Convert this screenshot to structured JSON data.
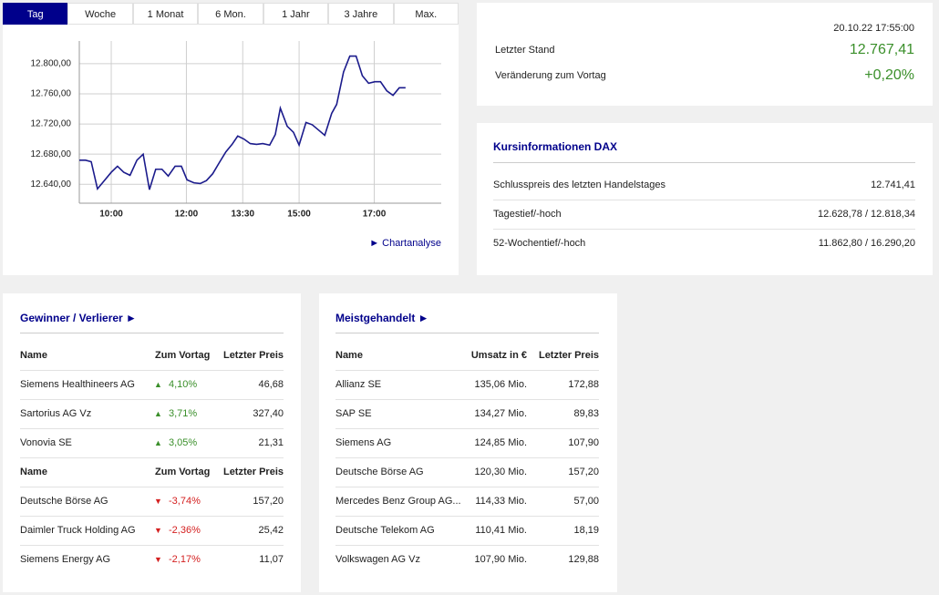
{
  "tabs": [
    "Tag",
    "Woche",
    "1 Monat",
    "6 Mon.",
    "1 Jahr",
    "3 Jahre",
    "Max."
  ],
  "chart_data": {
    "type": "line",
    "color": "#1b1b8c",
    "grid": true,
    "x": [
      "09:09",
      "09:19",
      "09:28",
      "09:38",
      "09:48",
      "10:00",
      "10:10",
      "10:20",
      "10:30",
      "10:41",
      "10:51",
      "11:01",
      "11:11",
      "11:21",
      "11:31",
      "11:42",
      "11:52",
      "12:01",
      "12:12",
      "12:22",
      "12:32",
      "12:42",
      "12:52",
      "13:03",
      "13:13",
      "13:22",
      "13:32",
      "13:42",
      "13:52",
      "14:02",
      "14:13",
      "14:22",
      "14:30",
      "14:41",
      "14:51",
      "15:00",
      "15:11",
      "15:21",
      "15:31",
      "15:41",
      "15:52",
      "16:00",
      "16:11",
      "16:21",
      "16:31",
      "16:41",
      "16:51",
      "17:01",
      "17:10",
      "17:20",
      "17:30",
      "17:40",
      "17:50"
    ],
    "values": [
      12672,
      12672,
      12670,
      12634,
      12644,
      12656,
      12664,
      12656,
      12652,
      12672,
      12680,
      12633,
      12660,
      12660,
      12651,
      12664,
      12664,
      12646,
      12642,
      12641,
      12645,
      12654,
      12668,
      12683,
      12693,
      12704,
      12700,
      12694,
      12693,
      12694,
      12692,
      12706,
      12741,
      12717,
      12709,
      12692,
      12722,
      12719,
      12712,
      12705,
      12734,
      12746,
      12789,
      12810,
      12810,
      12784,
      12774,
      12776,
      12776,
      12764,
      12758,
      12768,
      12768
    ],
    "xlim": [
      "09:09",
      "18:47"
    ],
    "xticks": [
      "10:00",
      "12:00",
      "13:30",
      "15:00",
      "17:00"
    ],
    "ylim": [
      12615,
      12830
    ],
    "yticks": [
      {
        "value": 12640,
        "label": "12.640,00"
      },
      {
        "value": 12680,
        "label": "12.680,00"
      },
      {
        "value": 12720,
        "label": "12.720,00"
      },
      {
        "value": 12760,
        "label": "12.760,00"
      },
      {
        "value": 12800,
        "label": "12.800,00"
      }
    ],
    "link": "► Chartanalyse"
  },
  "quote": {
    "timestamp": "20.10.22 17:55:00",
    "rows": [
      [
        "Letzter Stand",
        "12.767,41"
      ],
      [
        "Veränderung zum Vortag",
        "+0,20%"
      ]
    ]
  },
  "info": {
    "title": "Kursinformationen DAX",
    "rows": [
      [
        "Schlusspreis des letzten Handelstages",
        "12.741,41"
      ],
      [
        "Tagestief/-hoch",
        "12.628,78 / 12.818,34"
      ],
      [
        "52-Wochentief/-hoch",
        "11.862,80 / 16.290,20"
      ]
    ]
  },
  "movers": {
    "title": "Gewinner / Verlierer ►",
    "sections": [
      {
        "header": [
          "Name",
          "Zum Vortag",
          "Letzter Preis"
        ],
        "rows": [
          [
            "Siemens Healthineers AG",
            "4,10%",
            "46,68"
          ],
          [
            "Sartorius AG Vz",
            "3,71%",
            "327,40"
          ],
          [
            "Vonovia SE",
            "3,05%",
            "21,31"
          ]
        ]
      },
      {
        "header": [
          "Name",
          "Zum Vortag",
          "Letzter Preis"
        ],
        "rows": [
          [
            "Deutsche Börse AG",
            "-3,74%",
            "157,20"
          ],
          [
            "Daimler Truck Holding AG",
            "-2,36%",
            "25,42"
          ],
          [
            "Siemens Energy AG",
            "-2,17%",
            "11,07"
          ]
        ]
      }
    ]
  },
  "traded": {
    "title": "Meistgehandelt ►",
    "header": [
      "Name",
      "Umsatz in €",
      "Letzter Preis"
    ],
    "rows": [
      [
        "Allianz SE",
        "135,06 Mio.",
        "172,88"
      ],
      [
        "SAP SE",
        "134,27 Mio.",
        "89,83"
      ],
      [
        "Siemens AG",
        "124,85 Mio.",
        "107,90"
      ],
      [
        "Deutsche Börse AG",
        "120,30 Mio.",
        "157,20"
      ],
      [
        "Mercedes Benz Group AG...",
        "114,33 Mio.",
        "57,00"
      ],
      [
        "Deutsche Telekom AG",
        "110,41 Mio.",
        "18,19"
      ],
      [
        "Volkswagen AG Vz",
        "107,90 Mio.",
        "129,88"
      ]
    ]
  }
}
